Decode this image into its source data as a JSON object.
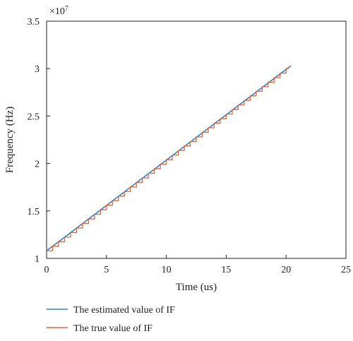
{
  "chart_data": {
    "type": "line",
    "title": "",
    "xlabel": "Time (us)",
    "ylabel": "Frequency (Hz)",
    "y_multiplier_label": "×10",
    "y_multiplier_exp": "7",
    "xlim": [
      0,
      25
    ],
    "ylim": [
      1,
      3.5
    ],
    "x_ticks": [
      0,
      5,
      10,
      15,
      20,
      25
    ],
    "y_ticks": [
      1,
      1.5,
      2,
      2.5,
      3,
      3.5
    ],
    "x_tick_labels": [
      "0",
      "5",
      "10",
      "15",
      "20",
      "25"
    ],
    "y_tick_labels": [
      "1",
      "1.5",
      "2",
      "2.5",
      "3",
      "3.5"
    ],
    "grid": false,
    "legend_position": "below",
    "series": [
      {
        "name": "The estimated value of IF",
        "color": "#2f7fd0",
        "style": "straight",
        "x": [
          0,
          20.4
        ],
        "y": [
          1.08,
          3.03
        ]
      },
      {
        "name": "The true value of IF",
        "color": "#e0643a",
        "style": "staircase",
        "x_start": 0,
        "x_end": 20.2,
        "y_start": 1.08,
        "y_end": 3.02,
        "step_width": 0.5
      }
    ]
  }
}
